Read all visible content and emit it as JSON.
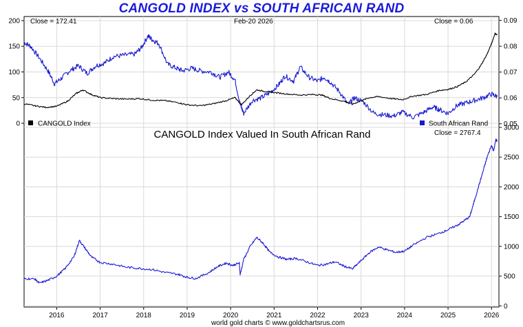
{
  "page": {
    "main_title": "CANGOLD INDEX vs SOUTH AFRICAN RAND",
    "footer": "world gold charts © www.goldchartsrus.com",
    "title_color": "#1a1adc"
  },
  "chart_data": [
    {
      "type": "line",
      "id": "top",
      "title": "CANGOLD INDEX vs SOUTH AFRICAN RAND",
      "date_label": "Feb-20  2026",
      "close_left": "Close = 172.41",
      "close_right": "Close = 0.06",
      "x_tick_labels": [
        "2016",
        "2017",
        "2018",
        "2019",
        "2020",
        "2021",
        "2022",
        "2023",
        "2024",
        "2025",
        "2026"
      ],
      "x_range": [
        2015.25,
        2026.17
      ],
      "left_axis": {
        "ticks": [
          "0",
          "50",
          "100",
          "150",
          "200"
        ],
        "tick_values": [
          0,
          50,
          100,
          150,
          200
        ],
        "ylim": [
          -8,
          208
        ]
      },
      "right_axis": {
        "ticks": [
          "0.05",
          "0.06",
          "0.07",
          "0.08",
          "0.09"
        ],
        "tick_values": [
          0.05,
          0.06,
          0.07,
          0.08,
          0.09
        ],
        "ylim": [
          0.0486,
          0.0915
        ]
      },
      "legend": [
        {
          "label": "CANGOLD Index",
          "color": "#000000",
          "position": "bottom-left"
        },
        {
          "label": "South African Rand",
          "color": "#1818d0",
          "position": "bottom-right"
        }
      ],
      "series": [
        {
          "name": "CANGOLD Index",
          "axis": "left",
          "color": "#000000",
          "x": [
            2015.25,
            2015.5,
            2015.75,
            2016.0,
            2016.25,
            2016.45,
            2016.6,
            2016.8,
            2017.0,
            2017.3,
            2017.6,
            2017.9,
            2018.2,
            2018.5,
            2018.8,
            2019.0,
            2019.3,
            2019.6,
            2019.9,
            2020.1,
            2020.25,
            2020.45,
            2020.6,
            2020.8,
            2021.0,
            2021.3,
            2021.6,
            2021.9,
            2022.1,
            2022.3,
            2022.6,
            2022.8,
            2023.0,
            2023.2,
            2023.4,
            2023.7,
            2023.95,
            2024.2,
            2024.5,
            2024.8,
            2025.0,
            2025.2,
            2025.4,
            2025.6,
            2025.75,
            2025.9,
            2026.0,
            2026.08,
            2026.13
          ],
          "values": [
            38,
            34,
            31,
            33,
            43,
            58,
            65,
            56,
            50,
            48,
            47,
            48,
            45,
            44,
            40,
            36,
            34,
            38,
            44,
            50,
            36,
            54,
            65,
            62,
            60,
            57,
            55,
            56,
            55,
            48,
            43,
            37,
            44,
            50,
            52,
            48,
            46,
            53,
            56,
            64,
            66,
            71,
            80,
            95,
            112,
            135,
            155,
            175,
            172
          ]
        },
        {
          "name": "South African Rand",
          "axis": "right",
          "color": "#1818d0",
          "x": [
            2015.25,
            2015.4,
            2015.6,
            2015.8,
            2015.95,
            2016.1,
            2016.3,
            2016.5,
            2016.7,
            2016.9,
            2017.1,
            2017.3,
            2017.55,
            2017.8,
            2017.95,
            2018.1,
            2018.2,
            2018.35,
            2018.55,
            2018.75,
            2018.9,
            2019.1,
            2019.3,
            2019.55,
            2019.75,
            2019.95,
            2020.1,
            2020.22,
            2020.3,
            2020.5,
            2020.7,
            2020.9,
            2021.1,
            2021.25,
            2021.45,
            2021.6,
            2021.8,
            2022.0,
            2022.15,
            2022.3,
            2022.5,
            2022.7,
            2022.85,
            2023.05,
            2023.3,
            2023.5,
            2023.75,
            2023.95,
            2024.2,
            2024.45,
            2024.65,
            2024.8,
            2025.0,
            2025.2,
            2025.4,
            2025.6,
            2025.8,
            2026.0,
            2026.13
          ],
          "values": [
            0.0815,
            0.08,
            0.0755,
            0.0705,
            0.0655,
            0.0675,
            0.0705,
            0.0725,
            0.0695,
            0.0725,
            0.0735,
            0.076,
            0.0765,
            0.077,
            0.0795,
            0.084,
            0.0825,
            0.081,
            0.073,
            0.0715,
            0.0705,
            0.0715,
            0.0705,
            0.07,
            0.068,
            0.07,
            0.067,
            0.0575,
            0.054,
            0.059,
            0.06,
            0.062,
            0.065,
            0.0685,
            0.0665,
            0.072,
            0.068,
            0.0665,
            0.068,
            0.066,
            0.0625,
            0.0575,
            0.06,
            0.0585,
            0.054,
            0.0535,
            0.053,
            0.0545,
            0.0525,
            0.0545,
            0.0565,
            0.0555,
            0.054,
            0.057,
            0.058,
            0.059,
            0.06,
            0.0615,
            0.0605
          ]
        }
      ]
    },
    {
      "type": "line",
      "id": "bottom",
      "title": "CANGOLD Index Valued In South African Rand",
      "close_label": "Close = 2767.4",
      "x_tick_labels": [
        "2016",
        "2017",
        "2018",
        "2019",
        "2020",
        "2021",
        "2022",
        "2023",
        "2024",
        "2025",
        "2026"
      ],
      "x_range": [
        2015.25,
        2026.17
      ],
      "right_axis": {
        "ticks": [
          "0",
          "500",
          "1000",
          "1500",
          "2000",
          "2500",
          "3000"
        ],
        "tick_values": [
          0,
          500,
          1000,
          1500,
          2000,
          2500,
          3000
        ],
        "ylim": [
          -20,
          3000
        ]
      },
      "series": [
        {
          "name": "CANGOLD Index in ZAR",
          "color": "#1818d0",
          "x": [
            2015.25,
            2015.5,
            2015.6,
            2015.8,
            2016.0,
            2016.2,
            2016.4,
            2016.52,
            2016.65,
            2016.8,
            2017.0,
            2017.3,
            2017.6,
            2017.9,
            2018.2,
            2018.5,
            2018.8,
            2019.0,
            2019.2,
            2019.5,
            2019.7,
            2019.9,
            2020.05,
            2020.2,
            2020.22,
            2020.3,
            2020.45,
            2020.6,
            2020.75,
            2020.9,
            2021.1,
            2021.3,
            2021.5,
            2021.75,
            2022.0,
            2022.2,
            2022.4,
            2022.6,
            2022.8,
            2023.0,
            2023.2,
            2023.4,
            2023.6,
            2023.8,
            2024.0,
            2024.2,
            2024.5,
            2024.8,
            2025.0,
            2025.2,
            2025.35,
            2025.5,
            2025.6,
            2025.7,
            2025.8,
            2025.9,
            2026.0,
            2026.05,
            2026.1,
            2026.13
          ],
          "values": [
            460,
            450,
            380,
            430,
            500,
            630,
            830,
            1100,
            970,
            820,
            730,
            700,
            650,
            630,
            610,
            560,
            530,
            480,
            460,
            560,
            660,
            720,
            680,
            720,
            520,
            780,
            1000,
            1150,
            1050,
            900,
            820,
            780,
            800,
            740,
            680,
            700,
            740,
            670,
            620,
            760,
            900,
            990,
            940,
            900,
            920,
            1020,
            1150,
            1220,
            1280,
            1350,
            1420,
            1500,
            1750,
            2000,
            2250,
            2500,
            2700,
            2600,
            2800,
            2767
          ]
        }
      ]
    }
  ]
}
